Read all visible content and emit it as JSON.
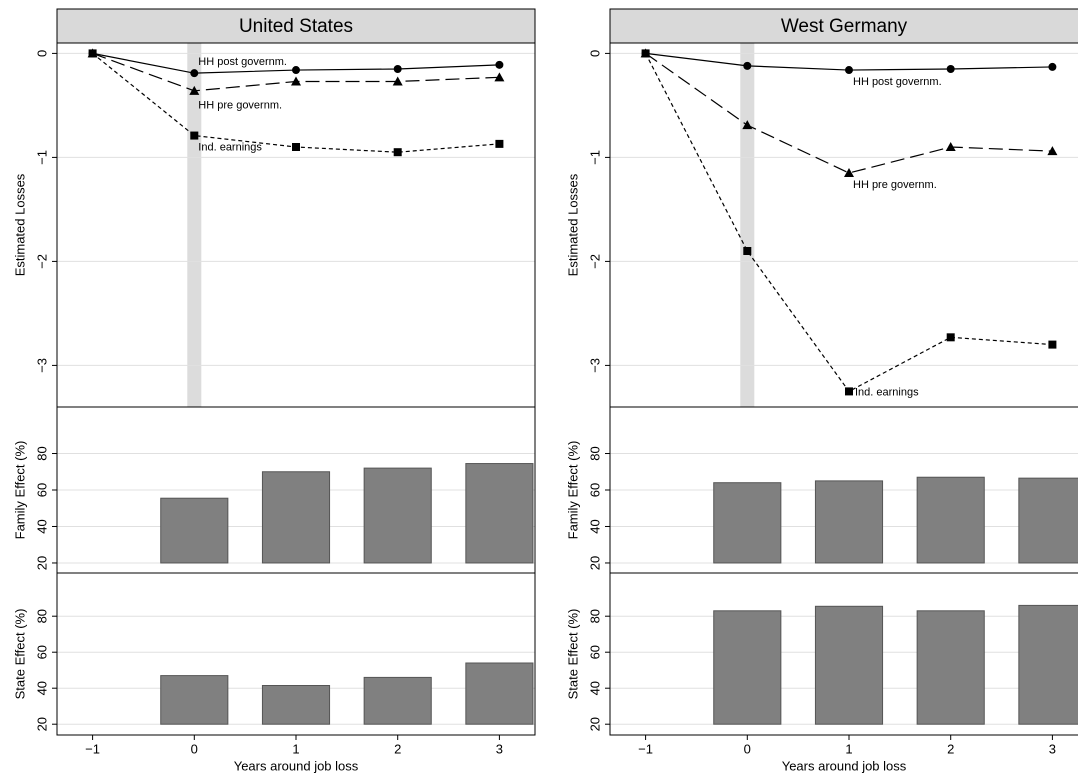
{
  "chart_data": [
    {
      "type": "line",
      "title": "United States",
      "ylabel": "Estimated Losses",
      "x": [
        -1,
        0,
        1,
        2,
        3
      ],
      "xlim": [
        -1.35,
        3.35
      ],
      "ylim": [
        -3.4,
        0.1
      ],
      "yticks": [
        0,
        {
          "value": -1,
          "label": "−1"
        },
        {
          "value": -2,
          "label": "−2"
        },
        {
          "value": -3,
          "label": "−3"
        }
      ],
      "grid": true,
      "highlight_x": 0,
      "series": [
        {
          "name": "HH post governm.",
          "color": "#000",
          "dash": "solid",
          "marker": "circle",
          "values": [
            0,
            -0.19,
            -0.16,
            -0.15,
            -0.11
          ]
        },
        {
          "name": "HH pre governm.",
          "color": "#000",
          "dash": "long",
          "marker": "triangle",
          "values": [
            0,
            -0.36,
            -0.27,
            -0.27,
            -0.23
          ]
        },
        {
          "name": "Ind. earnings",
          "color": "#000",
          "dash": "short",
          "marker": "square",
          "values": [
            0,
            -0.79,
            -0.9,
            -0.95,
            -0.87
          ]
        }
      ]
    },
    {
      "type": "line",
      "title": "West Germany",
      "ylabel": "Estimated Losses",
      "x": [
        -1,
        0,
        1,
        2,
        3
      ],
      "xlim": [
        -1.35,
        3.35
      ],
      "ylim": [
        -3.4,
        0.1
      ],
      "yticks": [
        0,
        {
          "value": -1,
          "label": "−1"
        },
        {
          "value": -2,
          "label": "−2"
        },
        {
          "value": -3,
          "label": "−3"
        }
      ],
      "grid": true,
      "highlight_x": 0,
      "series": [
        {
          "name": "HH post governm.",
          "color": "#000",
          "dash": "solid",
          "marker": "circle",
          "values": [
            0,
            -0.12,
            -0.16,
            -0.15,
            -0.13
          ]
        },
        {
          "name": "HH pre governm.",
          "color": "#000",
          "dash": "long",
          "marker": "triangle",
          "values": [
            0,
            -0.69,
            -1.15,
            -0.9,
            -0.94
          ]
        },
        {
          "name": "Ind. earnings",
          "color": "#000",
          "dash": "short",
          "marker": "square",
          "values": [
            0,
            -1.9,
            -3.25,
            -2.73,
            -2.8
          ]
        }
      ]
    },
    {
      "type": "bar",
      "ylabel": "Family Effect (%)",
      "x": [
        -1,
        0,
        1,
        2,
        3
      ],
      "values": [
        null,
        55.5,
        70,
        72,
        74.5
      ],
      "color": "#808080",
      "xlim": [
        -1.35,
        3.35
      ],
      "ylim": [
        14.5,
        105.5
      ],
      "yticks": [
        20,
        40,
        60,
        80
      ],
      "grid": true
    },
    {
      "type": "bar",
      "ylabel": "Family Effect (%)",
      "x": [
        -1,
        0,
        1,
        2,
        3
      ],
      "values": [
        null,
        64,
        65,
        67,
        66.5
      ],
      "color": "#808080",
      "xlim": [
        -1.35,
        3.35
      ],
      "ylim": [
        14.5,
        105.5
      ],
      "yticks": [
        20,
        40,
        60,
        80
      ],
      "grid": true
    },
    {
      "type": "bar",
      "ylabel": "State Effect (%)",
      "xlabel": "Years around job loss",
      "x": [
        -1,
        0,
        1,
        2,
        3
      ],
      "values": [
        null,
        47,
        41.5,
        46,
        54
      ],
      "color": "#808080",
      "xlim": [
        -1.35,
        3.35
      ],
      "ylim": [
        14,
        104
      ],
      "yticks": [
        20,
        40,
        60,
        80
      ],
      "xticks": [
        {
          "value": -1,
          "label": "−1"
        },
        0,
        1,
        2,
        3
      ],
      "grid": true
    },
    {
      "type": "bar",
      "ylabel": "State Effect (%)",
      "xlabel": "Years around job loss",
      "x": [
        -1,
        0,
        1,
        2,
        3
      ],
      "values": [
        null,
        83,
        85.5,
        83,
        86
      ],
      "color": "#808080",
      "xlim": [
        -1.35,
        3.35
      ],
      "ylim": [
        14,
        104
      ],
      "yticks": [
        20,
        40,
        60,
        80
      ],
      "xticks": [
        {
          "value": -1,
          "label": "−1"
        },
        0,
        1,
        2,
        3
      ],
      "grid": true
    }
  ]
}
